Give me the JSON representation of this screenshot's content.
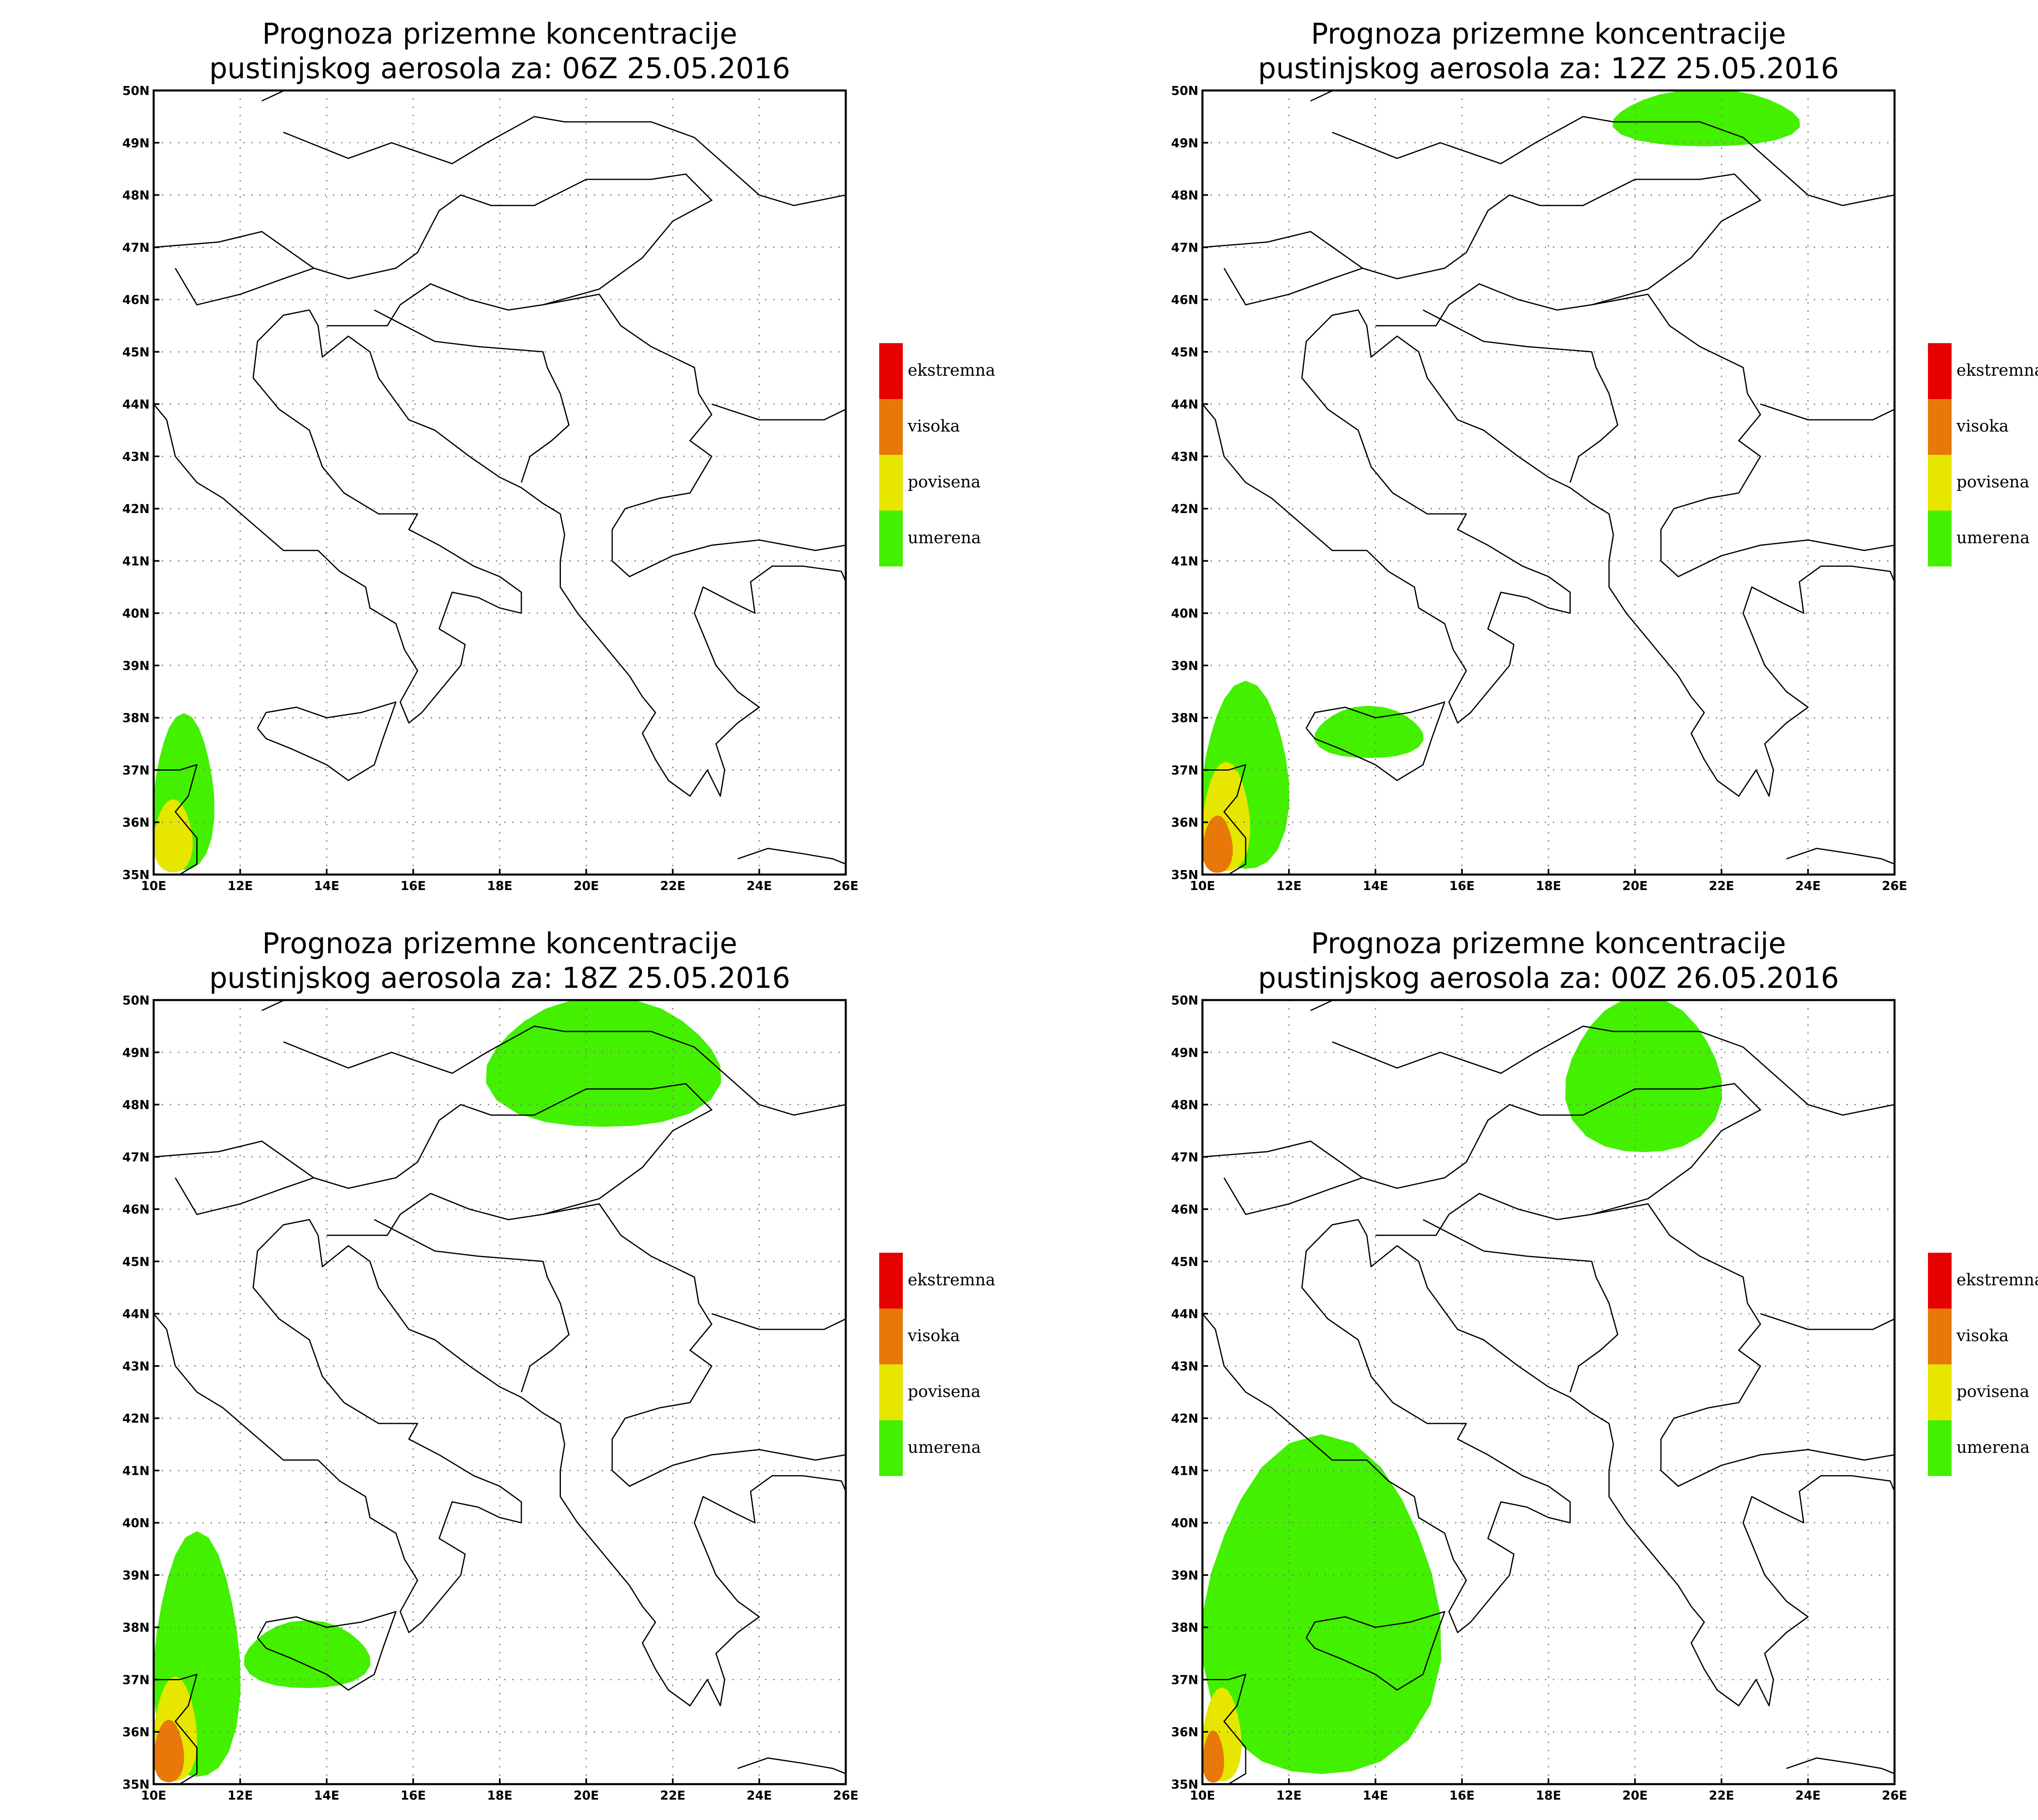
{
  "colors": {
    "ekstremna": "#e60000",
    "visoka": "#e8780a",
    "povisena": "#e6e600",
    "umerena": "#43f000",
    "land_outline": "#000000",
    "background": "#ffffff"
  },
  "legend": {
    "items": [
      {
        "key": "ekstremna",
        "label": "ekstremna"
      },
      {
        "key": "visoka",
        "label": "visoka"
      },
      {
        "key": "povisena",
        "label": "povisena"
      },
      {
        "key": "umerena",
        "label": "umerena"
      }
    ]
  },
  "axes": {
    "lon_range": [
      10,
      26
    ],
    "lat_range": [
      35,
      50
    ],
    "x_ticks": [
      "10E",
      "12E",
      "14E",
      "16E",
      "18E",
      "20E",
      "22E",
      "24E",
      "26E"
    ],
    "y_ticks": [
      "35N",
      "36N",
      "37N",
      "38N",
      "39N",
      "40N",
      "41N",
      "42N",
      "43N",
      "44N",
      "45N",
      "46N",
      "47N",
      "48N",
      "49N",
      "50N"
    ],
    "grid": "dotted every 2 degrees longitude and 1 degree latitude"
  },
  "panels": [
    {
      "title_line1": "Prognoza prizemne koncentracije",
      "title_line2": "pustinjskog aerosola za: 06Z 25.05.2016",
      "areas": [
        {
          "level": "umerena",
          "region": "Tunisia / Strait of Sicily coast",
          "lon": [
            10.0,
            11.4
          ],
          "lat": [
            35.0,
            38.0
          ]
        },
        {
          "level": "povisena",
          "region": "Tunisia east coast",
          "lon": [
            10.0,
            10.9
          ],
          "lat": [
            35.0,
            36.4
          ]
        }
      ]
    },
    {
      "title_line1": "Prognoza prizemne koncentracije",
      "title_line2": "pustinjskog aerosola za: 12Z 25.05.2016",
      "areas": [
        {
          "level": "umerena",
          "region": "Tunisia coast",
          "lon": [
            10.0,
            12.0
          ],
          "lat": [
            35.0,
            38.6
          ]
        },
        {
          "level": "povisena",
          "region": "Tunisia coast",
          "lon": [
            10.0,
            11.1
          ],
          "lat": [
            35.0,
            37.1
          ]
        },
        {
          "level": "visoka",
          "region": "Tunisia coast",
          "lon": [
            10.0,
            10.7
          ],
          "lat": [
            35.0,
            36.1
          ]
        },
        {
          "level": "umerena",
          "region": "Sicily",
          "lon": [
            12.6,
            15.1
          ],
          "lat": [
            37.2,
            38.2
          ]
        },
        {
          "level": "umerena",
          "region": "Poland / Slovakia",
          "lon": [
            19.5,
            23.8
          ],
          "lat": [
            48.9,
            50.0
          ]
        }
      ]
    },
    {
      "title_line1": "Prognoza prizemne koncentracije",
      "title_line2": "pustinjskog aerosola za: 18Z 25.05.2016",
      "areas": [
        {
          "level": "umerena",
          "region": "Tunisia / Strait of Sicily",
          "lon": [
            10.0,
            12.0
          ],
          "lat": [
            35.0,
            39.7
          ]
        },
        {
          "level": "povisena",
          "region": "Tunisia coast",
          "lon": [
            10.0,
            11.0
          ],
          "lat": [
            35.0,
            37.0
          ]
        },
        {
          "level": "visoka",
          "region": "Tunisia coast",
          "lon": [
            10.0,
            10.7
          ],
          "lat": [
            35.0,
            36.2
          ]
        },
        {
          "level": "umerena",
          "region": "Sicily",
          "lon": [
            12.1,
            15.0
          ],
          "lat": [
            36.8,
            38.1
          ]
        },
        {
          "level": "umerena",
          "region": "Poland / Slovakia / Hungary",
          "lon": [
            17.7,
            23.1
          ],
          "lat": [
            47.5,
            50.0
          ]
        }
      ]
    },
    {
      "title_line1": "Prognoza prizemne koncentracije",
      "title_line2": "pustinjskog aerosola za: 00Z 26.05.2016",
      "areas": [
        {
          "level": "umerena",
          "region": "Tunisia to Sicily and central Mediterranean",
          "lon": [
            10.0,
            15.5
          ],
          "lat": [
            35.0,
            41.5
          ]
        },
        {
          "level": "povisena",
          "region": "Tunisia coast",
          "lon": [
            10.0,
            10.9
          ],
          "lat": [
            35.0,
            36.8
          ]
        },
        {
          "level": "visoka",
          "region": "Tunisia coast",
          "lon": [
            10.0,
            10.5
          ],
          "lat": [
            35.0,
            36.0
          ]
        },
        {
          "level": "umerena",
          "region": "Poland / Slovakia / Hungary",
          "lon": [
            18.4,
            22.0
          ],
          "lat": [
            47.0,
            50.0
          ]
        }
      ]
    }
  ]
}
